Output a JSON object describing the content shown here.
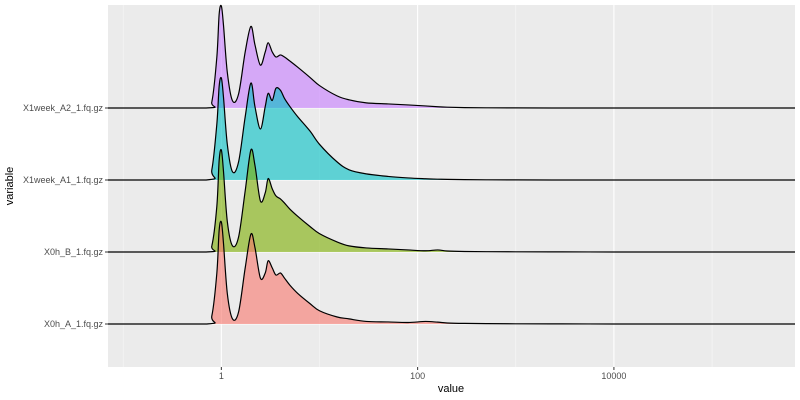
{
  "chart_data": {
    "type": "ridgeline",
    "xlabel": "value",
    "ylabel": "variable",
    "x_scale": "log10",
    "xlim": [
      0.07,
      700000
    ],
    "x_ticks": [
      1,
      100,
      10000
    ],
    "x_tick_labels": [
      "1",
      "100",
      "10000"
    ],
    "grid": true,
    "legend": "none",
    "series": [
      {
        "name": "X0h_A_1.fq.gz",
        "color": "#F8766D",
        "x": [
          0.07,
          0.7,
          0.8,
          0.9,
          0.95,
          1.0,
          1.05,
          1.15,
          1.3,
          1.5,
          1.75,
          2.0,
          2.2,
          2.5,
          2.8,
          3.0,
          3.3,
          3.6,
          4.0,
          4.4,
          5.0,
          6.0,
          8,
          10,
          15,
          20,
          30,
          50,
          80,
          120,
          160,
          200,
          300,
          500,
          1000,
          3000,
          10000,
          30000,
          100000,
          700000
        ],
        "density": [
          0,
          0,
          0.08,
          0.5,
          0.92,
          1.0,
          0.8,
          0.3,
          0.05,
          0.12,
          0.55,
          0.88,
          0.75,
          0.45,
          0.5,
          0.62,
          0.55,
          0.48,
          0.5,
          0.45,
          0.38,
          0.3,
          0.2,
          0.13,
          0.07,
          0.05,
          0.025,
          0.02,
          0.015,
          0.025,
          0.018,
          0.01,
          0.006,
          0.004,
          0.002,
          0.001,
          0,
          0,
          0,
          0
        ]
      },
      {
        "name": "X0h_B_1.fq.gz",
        "color": "#7CAE00",
        "x": [
          0.07,
          0.7,
          0.8,
          0.9,
          0.95,
          1.0,
          1.05,
          1.15,
          1.3,
          1.5,
          1.75,
          2.0,
          2.2,
          2.5,
          2.8,
          3.0,
          3.3,
          3.6,
          4.0,
          4.4,
          5.0,
          6.0,
          8,
          10,
          15,
          20,
          30,
          50,
          80,
          120,
          160,
          200,
          300,
          500,
          1000,
          3000,
          10000,
          30000,
          100000,
          700000
        ],
        "density": [
          0,
          0,
          0.06,
          0.45,
          0.9,
          1.0,
          0.8,
          0.3,
          0.06,
          0.15,
          0.6,
          1.0,
          0.85,
          0.5,
          0.58,
          0.72,
          0.62,
          0.55,
          0.52,
          0.48,
          0.42,
          0.35,
          0.25,
          0.18,
          0.1,
          0.06,
          0.04,
          0.03,
          0.02,
          0.012,
          0.02,
          0.01,
          0.005,
          0.003,
          0.002,
          0.001,
          0,
          0,
          0,
          0
        ]
      },
      {
        "name": "X1week_A1_1.fq.gz",
        "color": "#00BFC4",
        "x": [
          0.07,
          0.7,
          0.8,
          0.9,
          0.95,
          1.0,
          1.05,
          1.15,
          1.3,
          1.5,
          1.75,
          2.0,
          2.2,
          2.5,
          2.8,
          3.0,
          3.3,
          3.6,
          4.0,
          4.4,
          5.0,
          6.0,
          8,
          10,
          15,
          20,
          30,
          50,
          80,
          120,
          160,
          200,
          300,
          500,
          1000,
          3000,
          10000,
          30000,
          100000,
          700000
        ],
        "density": [
          0,
          0,
          0.1,
          0.55,
          0.92,
          1.0,
          0.82,
          0.35,
          0.08,
          0.18,
          0.62,
          0.95,
          0.72,
          0.5,
          0.72,
          0.85,
          0.78,
          0.9,
          0.88,
          0.8,
          0.72,
          0.62,
          0.48,
          0.35,
          0.18,
          0.1,
          0.06,
          0.035,
          0.02,
          0.012,
          0.008,
          0.006,
          0.004,
          0.002,
          0.001,
          0,
          0,
          0,
          0,
          0
        ]
      },
      {
        "name": "X1week_A2_1.fq.gz",
        "color": "#C77CFF",
        "x": [
          0.07,
          0.7,
          0.8,
          0.9,
          0.95,
          1.0,
          1.05,
          1.15,
          1.3,
          1.5,
          1.75,
          2.0,
          2.2,
          2.5,
          2.8,
          3.0,
          3.3,
          3.6,
          4.0,
          4.4,
          5.0,
          6.0,
          8,
          10,
          15,
          20,
          30,
          50,
          80,
          120,
          160,
          200,
          300,
          500,
          1000,
          3000,
          10000,
          30000,
          100000,
          700000
        ],
        "density": [
          0,
          0,
          0.06,
          0.5,
          0.92,
          1.0,
          0.82,
          0.35,
          0.07,
          0.14,
          0.55,
          0.8,
          0.62,
          0.42,
          0.55,
          0.64,
          0.55,
          0.5,
          0.52,
          0.5,
          0.46,
          0.4,
          0.3,
          0.22,
          0.12,
          0.08,
          0.05,
          0.04,
          0.03,
          0.02,
          0.012,
          0.008,
          0.004,
          0.002,
          0.001,
          0,
          0,
          0,
          0,
          0
        ]
      }
    ]
  }
}
